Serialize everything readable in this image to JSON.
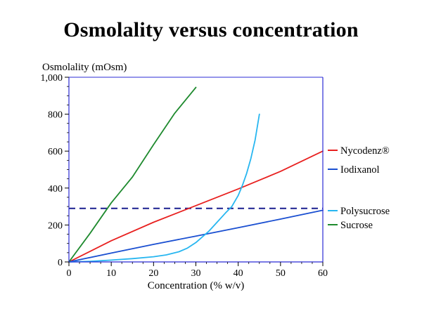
{
  "chart_data": {
    "type": "line",
    "title": "Osmolality versus concentration",
    "xlabel": "Concentration (% w/v)",
    "ylabel": "Osmolality (mOsm)",
    "xlim": [
      0,
      60
    ],
    "ylim": [
      0,
      1000
    ],
    "xticks": [
      0,
      10,
      20,
      30,
      40,
      50,
      60
    ],
    "yticks": [
      0,
      200,
      400,
      600,
      800,
      1000
    ],
    "xtick_labels": [
      "0",
      "10",
      "20",
      "30",
      "40",
      "50",
      "60"
    ],
    "ytick_labels": [
      "0",
      "200",
      "400",
      "600",
      "800",
      "1,000"
    ],
    "grid": false,
    "legend_position": "right",
    "series": [
      {
        "name": "Nycodenz®",
        "color": "#e8201f",
        "x": [
          0,
          10,
          20,
          30,
          40,
          50,
          60
        ],
        "y": [
          0,
          115,
          215,
          305,
          395,
          490,
          600
        ]
      },
      {
        "name": "Iodixanol",
        "color": "#1a4fd1",
        "x": [
          0,
          10,
          20,
          30,
          40,
          50,
          60
        ],
        "y": [
          0,
          48,
          95,
          140,
          185,
          232,
          280
        ]
      },
      {
        "name": "Polysucrose",
        "color": "#27b6f0",
        "x": [
          0,
          5,
          10,
          15,
          20,
          23,
          26,
          28,
          30,
          33,
          35,
          37,
          38.5,
          40,
          41,
          42,
          43,
          44,
          45
        ],
        "y": [
          0,
          3,
          10,
          18,
          28,
          38,
          55,
          75,
          105,
          165,
          215,
          265,
          300,
          360,
          415,
          480,
          560,
          660,
          800
        ]
      },
      {
        "name": "Sucrose",
        "color": "#1e8a2e",
        "x": [
          0,
          5,
          10,
          15,
          20,
          25,
          30
        ],
        "y": [
          0,
          155,
          320,
          460,
          635,
          805,
          945
        ]
      }
    ],
    "reference_line": {
      "y": 290,
      "color": "#1a1f8f",
      "style": "dashed"
    }
  }
}
